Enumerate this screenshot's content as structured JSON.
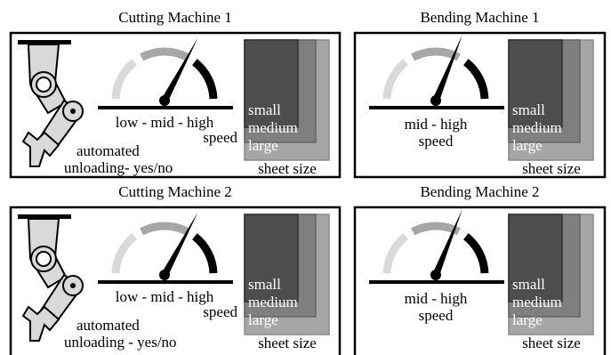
{
  "panels": [
    {
      "title": "Cutting Machine 1",
      "speed_label": [
        "low - mid - high",
        "speed"
      ],
      "unloading_label": [
        "automated",
        "unloading- yes/no"
      ],
      "sizes": [
        "small",
        "medium",
        "large"
      ],
      "size_label": "sheet size"
    },
    {
      "title": "Bending Machine 1",
      "speed_label": [
        "mid - high",
        "speed"
      ],
      "sizes": [
        "small",
        "medium",
        "large"
      ],
      "size_label": "sheet size"
    },
    {
      "title": "Cutting Machine 2",
      "speed_label": [
        "low - mid - high",
        "speed"
      ],
      "unloading_label": [
        "automated",
        "unloading - yes/no"
      ],
      "sizes": [
        "small",
        "medium",
        "large"
      ],
      "size_label": "sheet size"
    },
    {
      "title": "Bending Machine 2",
      "speed_label": [
        "mid - high",
        "speed"
      ],
      "sizes": [
        "small",
        "medium",
        "large"
      ],
      "size_label": "sheet size"
    }
  ]
}
